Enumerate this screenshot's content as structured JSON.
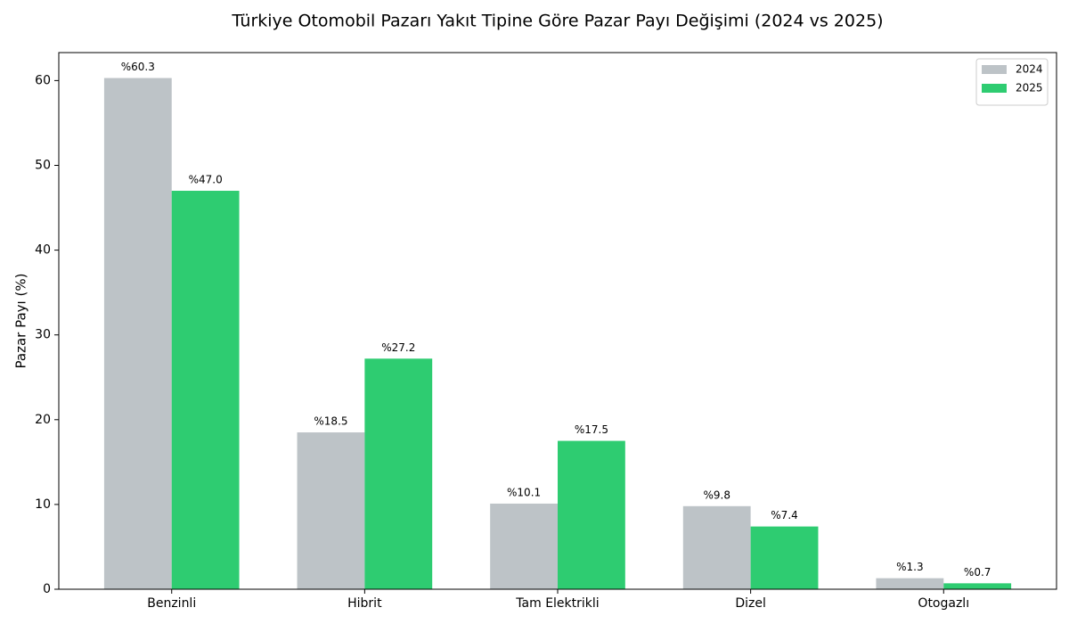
{
  "chart_data": {
    "type": "bar",
    "title": "Türkiye Otomobil Pazarı Yakıt Tipine Göre Pazar Payı Değişimi (2024 vs 2025)",
    "ylabel": "Pazar Payı (%)",
    "categories": [
      "Benzinli",
      "Hibrit",
      "Tam Elektrikli",
      "Dizel",
      "Otogazlı"
    ],
    "series": [
      {
        "name": "2024",
        "color": "#bdc3c7",
        "values": [
          60.3,
          18.5,
          10.1,
          9.8,
          1.3
        ],
        "value_labels": [
          "%60.3",
          "%18.5",
          "%10.1",
          "%9.8",
          "%1.3"
        ]
      },
      {
        "name": "2025",
        "color": "#2ecc71",
        "values": [
          47.0,
          27.2,
          17.5,
          7.4,
          0.7
        ],
        "value_labels": [
          "%47.0",
          "%27.2",
          "%17.5",
          "%7.4",
          "%0.7"
        ]
      }
    ],
    "ylim": [
      0,
      63.3
    ],
    "yticks": [
      0,
      10,
      20,
      30,
      40,
      50,
      60
    ],
    "grid": false,
    "legend": "upper right"
  }
}
